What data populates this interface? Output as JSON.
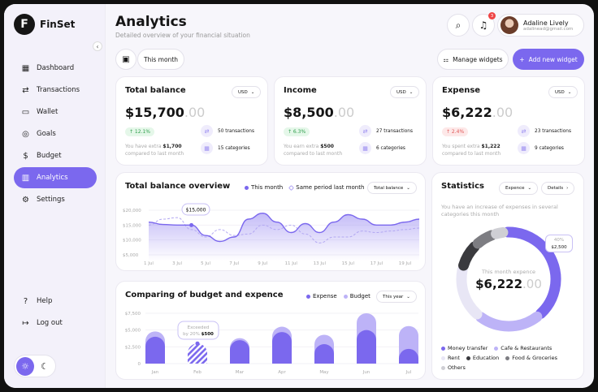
{
  "app": {
    "name": "FinSet",
    "logo_letter": "F"
  },
  "sidebar": {
    "items": [
      {
        "label": "Dashboard",
        "icon": "dashboard-icon",
        "glyph": "▦"
      },
      {
        "label": "Transactions",
        "icon": "transactions-icon",
        "glyph": "⇄"
      },
      {
        "label": "Wallet",
        "icon": "wallet-icon",
        "glyph": "▭"
      },
      {
        "label": "Goals",
        "icon": "target-icon",
        "glyph": "◎"
      },
      {
        "label": "Budget",
        "icon": "budget-icon",
        "glyph": "$"
      },
      {
        "label": "Analytics",
        "icon": "analytics-icon",
        "glyph": "▥",
        "active": true
      },
      {
        "label": "Settings",
        "icon": "gear-icon",
        "glyph": "⚙"
      }
    ],
    "bottom": [
      {
        "label": "Help",
        "icon": "help-icon",
        "glyph": "?"
      },
      {
        "label": "Log out",
        "icon": "logout-icon",
        "glyph": "↦"
      }
    ],
    "theme": {
      "light": "☼",
      "dark": "☾",
      "active": "light"
    }
  },
  "header": {
    "title": "Analytics",
    "subtitle": "Detailed overview of your financial situation",
    "notifications": "3",
    "user": {
      "name": "Adaline Lively",
      "email": "adalinead@gmail.com"
    },
    "period": "This month",
    "manage_widgets": "Manage widgets",
    "add_widget": "Add new widget"
  },
  "cards": [
    {
      "title": "Total balance",
      "currency": "USD",
      "amount": "$15,700",
      "decimals": ".00",
      "change": "↑ 12.1%",
      "trend": "up",
      "note_pre": "You have extra ",
      "note_amount": "$1,700",
      "note_post": "compared to last month",
      "transactions": "50 transactions",
      "categories": "15 categories"
    },
    {
      "title": "Income",
      "currency": "USD",
      "amount": "$8,500",
      "decimals": ".00",
      "change": "↑ 6.3%",
      "trend": "up",
      "note_pre": "You earn extra ",
      "note_amount": "$500",
      "note_post": "compared to last month",
      "transactions": "27 transactions",
      "categories": "6 categories"
    },
    {
      "title": "Expense",
      "currency": "USD",
      "amount": "$6,222",
      "decimals": ".00",
      "change": "↑ 2.4%",
      "trend": "down",
      "note_pre": "You spent extra ",
      "note_amount": "$1,222",
      "note_post": "compared to last month",
      "transactions": "23 transactions",
      "categories": "9 categories"
    }
  ],
  "overview": {
    "title": "Total balance overview",
    "legend_this": "This month",
    "legend_last": "Same period last month",
    "select": "Total balance",
    "tooltip": "$15,000"
  },
  "budget": {
    "title": "Comparing of budget and expence",
    "legend_expense": "Expense",
    "legend_budget": "Budget",
    "select": "This year",
    "tooltip_line1": "Exceeded",
    "tooltip_line2": "by 20% ",
    "tooltip_amount": "$500"
  },
  "statistics": {
    "title": "Statistics",
    "select": "Expence",
    "details": "Details",
    "description": "You have an increase of expenses in several categories this month",
    "center_label": "This month expence",
    "center_amount": "$6,222",
    "center_decimals": ".00",
    "tooltip_pct": "40%",
    "tooltip_amount": "$2,500"
  },
  "chart_data": [
    {
      "type": "area",
      "title": "Total balance overview",
      "x": [
        "1 Jul",
        "2 Jul",
        "3 Jul",
        "4 Jul",
        "5 Jul",
        "6 Jul",
        "7 Jul",
        "8 Jul",
        "9 Jul",
        "10 Jul",
        "11 Jul",
        "12 Jul",
        "13 Jul",
        "14 Jul",
        "15 Jul",
        "16 Jul",
        "17 Jul",
        "18 Jul",
        "19 Jul",
        "20 Jul"
      ],
      "xticks": [
        "1 Jul",
        "3 Jul",
        "5 Jul",
        "7 Jul",
        "9 Jul",
        "11 Jul",
        "13 Jul",
        "15 Jul",
        "17 Jul",
        "19 Jul"
      ],
      "yticks": [
        "$20,000",
        "$15,000",
        "$10,000",
        "$5,000"
      ],
      "ylim": [
        5000,
        20000
      ],
      "series": [
        {
          "name": "This month",
          "color": "#7b68ee",
          "values": [
            16000,
            15200,
            15000,
            15000,
            11500,
            9500,
            11000,
            17000,
            19000,
            16000,
            12500,
            15500,
            12500,
            16000,
            18500,
            17000,
            15000,
            15000,
            16000,
            17000
          ]
        },
        {
          "name": "Same period last month",
          "color": "#b3a8f2",
          "dashed": true,
          "values": [
            15000,
            17000,
            17500,
            13500,
            11000,
            13500,
            11500,
            12000,
            15000,
            13500,
            15000,
            12000,
            9000,
            11000,
            11000,
            13000,
            12500,
            13000,
            13500,
            14000
          ]
        }
      ]
    },
    {
      "type": "bar",
      "title": "Comparing of budget and expence",
      "categories": [
        "Jan",
        "Feb",
        "Mar",
        "Apr",
        "May",
        "Jun",
        "Jul"
      ],
      "yticks": [
        "$7,500",
        "$5,000",
        "$2,500",
        "0"
      ],
      "ylim": [
        0,
        7500
      ],
      "series": [
        {
          "name": "Budget",
          "color": "#bdb3f7",
          "values": [
            4800,
            2500,
            3800,
            5500,
            4300,
            7500,
            5600
          ]
        },
        {
          "name": "Expense",
          "color": "#7b68ee",
          "values": [
            4000,
            3000,
            3500,
            4700,
            2900,
            5000,
            2200
          ]
        }
      ],
      "highlight": "Feb"
    },
    {
      "type": "pie",
      "title": "Statistics",
      "labels": [
        "Money transfer",
        "Cafe & Restaurants",
        "Rent",
        "Education",
        "Food & Groceries",
        "Others"
      ],
      "values": [
        40,
        22,
        18,
        9,
        7,
        4
      ],
      "colors": [
        "#7b68ee",
        "#bdb3f7",
        "#e8e6f5",
        "#3a3a3e",
        "#7d7d82",
        "#cfcfd4"
      ]
    }
  ]
}
